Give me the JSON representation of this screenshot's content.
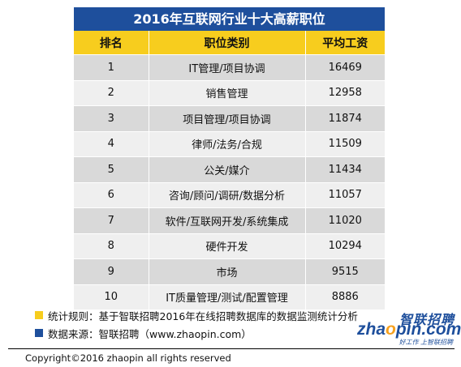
{
  "chart_data": {
    "type": "table",
    "title": "2016年互联网行业十大高薪职位",
    "columns": [
      "排名",
      "职位类别",
      "平均工资"
    ],
    "rows": [
      {
        "rank": "1",
        "category": "IT管理/项目协调",
        "salary": 16469
      },
      {
        "rank": "2",
        "category": "销售管理",
        "salary": 12958
      },
      {
        "rank": "3",
        "category": "项目管理/项目协调",
        "salary": 11874
      },
      {
        "rank": "4",
        "category": "律师/法务/合规",
        "salary": 11509
      },
      {
        "rank": "5",
        "category": "公关/媒介",
        "salary": 11434
      },
      {
        "rank": "6",
        "category": "咨询/顾问/调研/数据分析",
        "salary": 11057
      },
      {
        "rank": "7",
        "category": "软件/互联网开发/系统集成",
        "salary": 11020
      },
      {
        "rank": "8",
        "category": "硬件开发",
        "salary": 10294
      },
      {
        "rank": "9",
        "category": "市场",
        "salary": 9515
      },
      {
        "rank": "10",
        "category": "IT质量管理/测试/配置管理",
        "salary": 8886
      }
    ]
  },
  "notes": {
    "stat_rule": "统计规则：基于智联招聘2016年在线招聘数据库的数据监测统计分析",
    "data_source": "数据来源：智联招聘（www.zhaopin.com）"
  },
  "brand": {
    "name_cn": "智联招聘",
    "name_en_pre": "zha",
    "name_en_dot": "o",
    "name_en_post": "pin.com",
    "tagline": "好工作 上智联招聘"
  },
  "copyright": "Copyright©2016 zhaopin all rights reserved",
  "colors": {
    "header_blue": "#1e4f9c",
    "header_yellow": "#f7cd1e",
    "row_dark": "#d9d9d9",
    "row_light": "#efefef"
  }
}
